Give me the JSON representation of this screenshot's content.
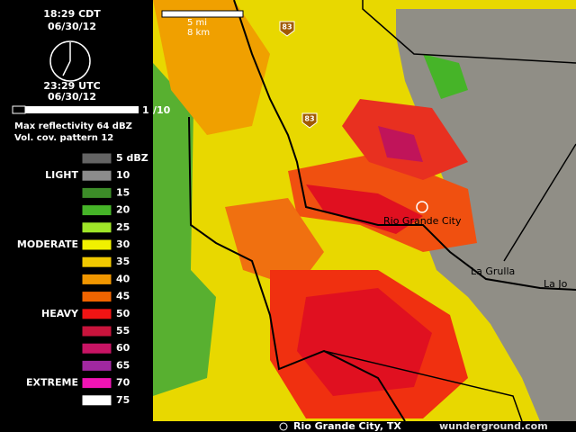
{
  "header": {
    "local_time": "18:29 CDT",
    "local_date": "06/30/12",
    "utc_time": "23:29 UTC",
    "utc_date": "06/30/12"
  },
  "loop": {
    "frame": "1",
    "total": "/10"
  },
  "info": {
    "max_reflectivity": "Max reflectivity 64 dBZ",
    "vcp": "Vol. cov. pattern 12"
  },
  "scale": {
    "miles": "5 mi",
    "km": "8 km"
  },
  "legend": {
    "items": [
      {
        "label": "5 dBZ",
        "color": "#646464"
      },
      {
        "label": "10",
        "color": "#8c8c8c"
      },
      {
        "label": "15",
        "color": "#3c8c28"
      },
      {
        "label": "20",
        "color": "#46b428"
      },
      {
        "label": "25",
        "color": "#a0e628"
      },
      {
        "label": "30",
        "color": "#f0f000"
      },
      {
        "label": "35",
        "color": "#f0c800"
      },
      {
        "label": "40",
        "color": "#f09600"
      },
      {
        "label": "45",
        "color": "#f06400"
      },
      {
        "label": "50",
        "color": "#f01414"
      },
      {
        "label": "55",
        "color": "#c8143c"
      },
      {
        "label": "60",
        "color": "#c81464"
      },
      {
        "label": "65",
        "color": "#a028a0"
      },
      {
        "label": "70",
        "color": "#f014b4"
      },
      {
        "label": "75",
        "color": "#ffffff"
      }
    ],
    "groups": [
      {
        "label": "LIGHT",
        "row": 1
      },
      {
        "label": "MODERATE",
        "row": 5
      },
      {
        "label": "HEAVY",
        "row": 9
      },
      {
        "label": "EXTREME",
        "row": 13
      }
    ]
  },
  "map": {
    "places": [
      "Rio Grande City",
      "La Grulla",
      "La Jo"
    ],
    "shields": [
      "83",
      "83"
    ]
  },
  "footer": {
    "location": "Rio Grande City, TX",
    "source": "wunderground.com"
  }
}
